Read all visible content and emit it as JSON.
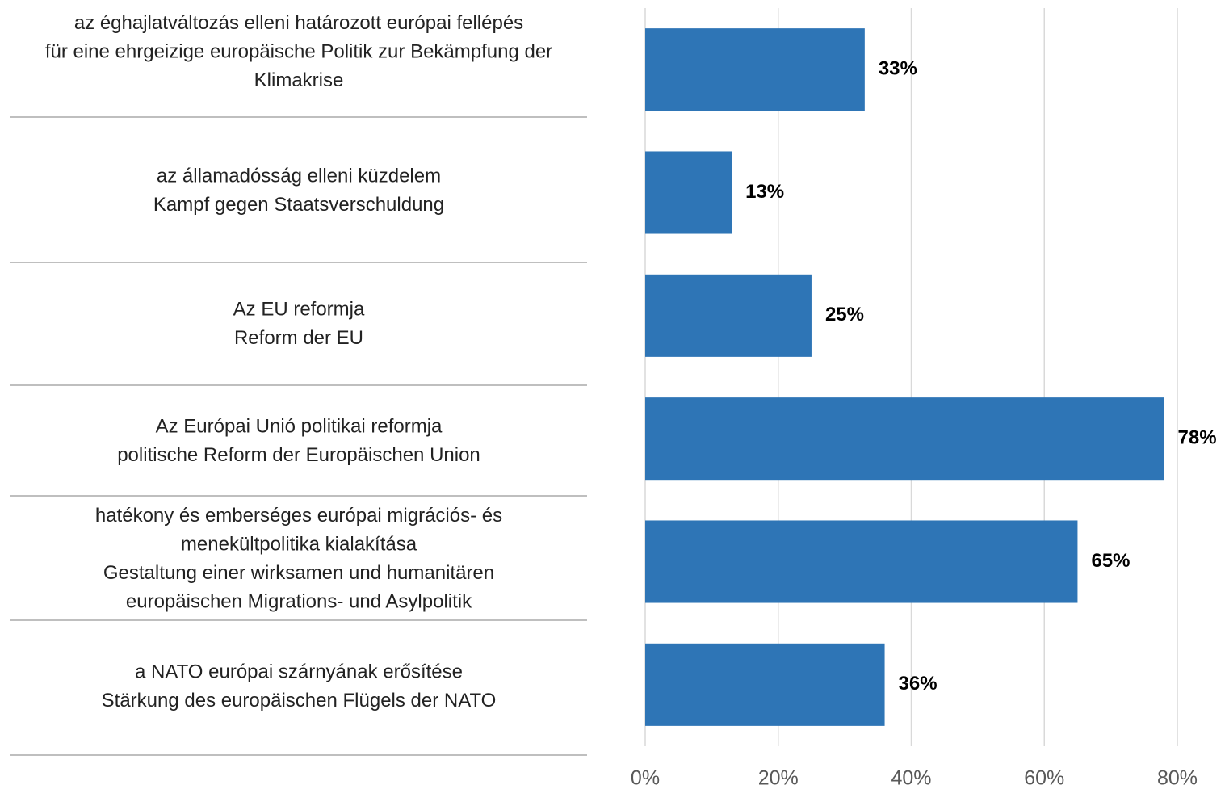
{
  "chart_data": {
    "type": "hbar",
    "categories": [
      [
        "az éghajlatváltozás elleni határozott európai fellépés",
        "für eine ehrgeizige europäische Politik zur Bekämpfung der",
        "Klimakrise"
      ],
      [
        "az államadósság elleni küzdelem",
        "Kampf gegen Staatsverschuldung"
      ],
      [
        "Az EU reformja",
        "Reform der EU"
      ],
      [
        "Az Európai Unió politikai reformja",
        "politische Reform der Europäischen Union"
      ],
      [
        "hatékony és emberséges európai migrációs- és",
        "menekültpolitika kialakítása",
        "Gestaltung einer wirksamen und humanitären",
        "europäischen Migrations- und Asylpolitik"
      ],
      [
        "a NATO európai szárnyának erősítése",
        "Stärkung des europäischen Flügels der NATO"
      ]
    ],
    "values": [
      33,
      13,
      25,
      78,
      65,
      36
    ],
    "value_labels": [
      "33%",
      "13%",
      "25%",
      "78%",
      "65%",
      "36%"
    ],
    "color": "#2e75b6",
    "xlim": [
      0,
      80
    ],
    "xticks": [
      {
        "value": 0,
        "label": "0%"
      },
      {
        "value": 20,
        "label": "20%"
      },
      {
        "value": 40,
        "label": "40%"
      },
      {
        "value": 60,
        "label": "60%"
      },
      {
        "value": 80,
        "label": "80%"
      }
    ],
    "grid": true
  }
}
